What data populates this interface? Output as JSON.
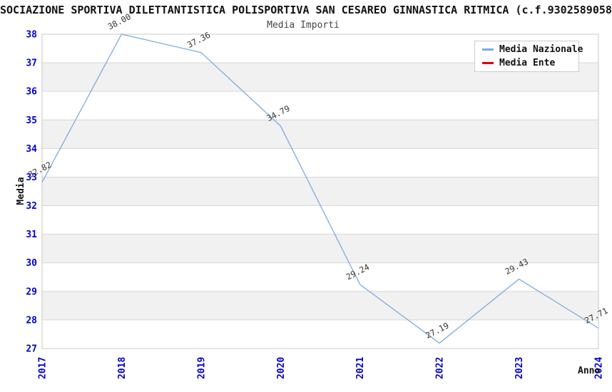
{
  "page": {
    "title": "SOCIAZIONE SPORTIVA DILETTANTISTICA POLISPORTIVA SAN CESAREO GINNASTICA RITMICA (c.f.9302589058",
    "subtitle": "Media Importi"
  },
  "legend": {
    "items": [
      {
        "label": "Media Nazionale",
        "color": "#7AACDF"
      },
      {
        "label": "Media Ente",
        "color": "#E60000"
      }
    ]
  },
  "chart_data": {
    "type": "line",
    "title": "Media Importi",
    "xlabel": "Anno",
    "ylabel": "Media",
    "categories": [
      "2017",
      "2018",
      "2019",
      "2020",
      "2021",
      "2022",
      "2023",
      "2024"
    ],
    "series": [
      {
        "name": "Media Nazionale",
        "color": "#7AACDF",
        "values": [
          32.82,
          38.0,
          37.36,
          34.79,
          29.24,
          27.19,
          29.43,
          27.71
        ],
        "point_labels": [
          "32.82",
          "38.00",
          "37.36",
          "34.79",
          "29.24",
          "27.19",
          "29.43",
          "27.71"
        ]
      },
      {
        "name": "Media Ente",
        "color": "#E60000",
        "values": []
      }
    ],
    "ylim": [
      27,
      38
    ],
    "yticks": [
      27,
      28,
      29,
      30,
      31,
      32,
      33,
      34,
      35,
      36,
      37,
      38
    ],
    "grid": "horizontal",
    "legend_position": "top-right-inside",
    "styles": {
      "tick_label_color": "#0000CC",
      "grid_color": "#D6D6D6",
      "band_color": "#F1F1F1",
      "border_color": "#C9C9C9",
      "point_label_color": "#333333"
    }
  }
}
